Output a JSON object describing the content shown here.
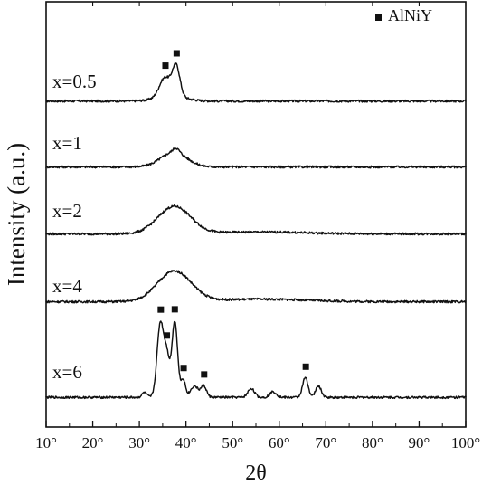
{
  "chart_data": {
    "type": "line",
    "xlabel": "2θ",
    "ylabel": "Intensity (a.u.)",
    "xlim": [
      10,
      100
    ],
    "x_ticks": [
      "10°",
      "20°",
      "30°",
      "40°",
      "50°",
      "60°",
      "70°",
      "80°",
      "90°",
      "100°"
    ],
    "x_tick_values": [
      10,
      20,
      30,
      40,
      50,
      60,
      70,
      80,
      90,
      100
    ],
    "grid": false,
    "legend": {
      "position": "top-right",
      "marker": "square",
      "label": "AlNiY"
    },
    "series": [
      {
        "name": "x=0.5",
        "baseline": 0.09,
        "features": [
          {
            "center": 35.5,
            "height": 0.3,
            "width": 1.2
          },
          {
            "center": 37.9,
            "height": 0.47,
            "width": 0.8
          },
          {
            "center": 36.8,
            "height": 0.08,
            "width": 3.0
          }
        ],
        "markers_2theta": [
          35.6,
          38.0
        ]
      },
      {
        "name": "x=1",
        "baseline": 0.05,
        "features": [
          {
            "center": 37.4,
            "height": 0.23,
            "width": 2.8
          },
          {
            "center": 37.9,
            "height": 0.07,
            "width": 0.7
          }
        ],
        "markers_2theta": []
      },
      {
        "name": "x=2",
        "baseline": 0.05,
        "features": [
          {
            "center": 37.5,
            "height": 0.43,
            "width": 3.5
          },
          {
            "center": 56.0,
            "height": 0.03,
            "width": 10.0
          }
        ],
        "markers_2theta": []
      },
      {
        "name": "x=4",
        "baseline": 0.05,
        "features": [
          {
            "center": 37.5,
            "height": 0.48,
            "width": 3.6
          },
          {
            "center": 56.0,
            "height": 0.04,
            "width": 10.0
          }
        ],
        "markers_2theta": []
      },
      {
        "name": "x=6",
        "baseline": 0.04,
        "features": [
          {
            "center": 34.5,
            "height": 1.16,
            "width": 0.7
          },
          {
            "center": 35.9,
            "height": 0.62,
            "width": 0.6
          },
          {
            "center": 37.6,
            "height": 1.2,
            "width": 0.6
          },
          {
            "center": 39.4,
            "height": 0.28,
            "width": 0.5
          },
          {
            "center": 41.8,
            "height": 0.18,
            "width": 0.8
          },
          {
            "center": 43.8,
            "height": 0.18,
            "width": 0.6
          },
          {
            "center": 31.1,
            "height": 0.08,
            "width": 0.5
          },
          {
            "center": 54.0,
            "height": 0.14,
            "width": 0.7
          },
          {
            "center": 58.7,
            "height": 0.09,
            "width": 0.7
          },
          {
            "center": 65.6,
            "height": 0.31,
            "width": 0.6
          },
          {
            "center": 68.4,
            "height": 0.18,
            "width": 0.6
          }
        ],
        "markers_2theta": [
          34.6,
          35.9,
          37.6,
          39.5,
          43.9,
          65.7
        ]
      }
    ]
  }
}
